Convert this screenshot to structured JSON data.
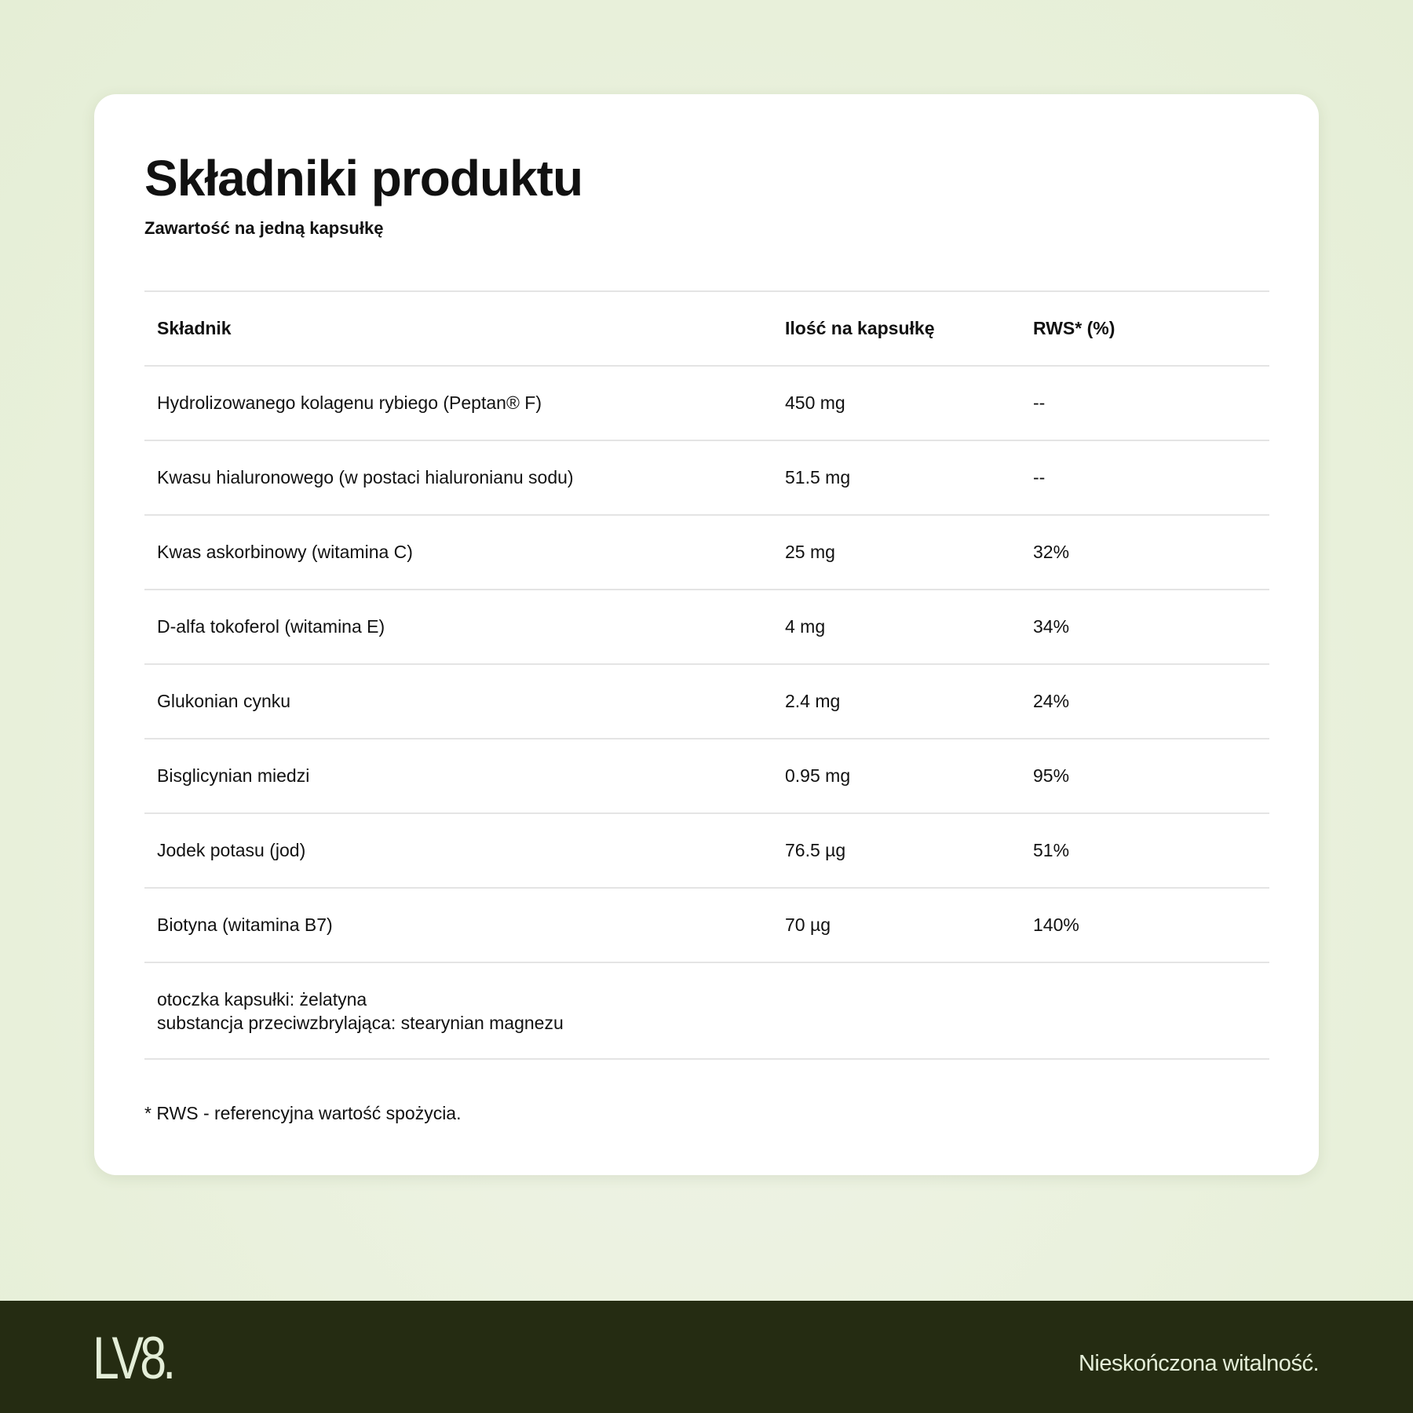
{
  "title": "Składniki produktu",
  "subtitle": "Zawartość na jedną kapsułkę",
  "table": {
    "headers": [
      "Składnik",
      "Ilość na kapsułkę",
      "RWS* (%)"
    ],
    "rows": [
      [
        "Hydrolizowanego kolagenu rybiego (Peptan® F)",
        "450 mg",
        "--"
      ],
      [
        "Kwasu hialuronowego (w postaci hialuronianu sodu)",
        "51.5 mg",
        "--"
      ],
      [
        "Kwas askorbinowy (witamina C)",
        "25 mg",
        "32%"
      ],
      [
        "D-alfa tokoferol (witamina E)",
        "4 mg",
        "34%"
      ],
      [
        "Glukonian cynku",
        "2.4 mg",
        "24%"
      ],
      [
        "Bisglicynian miedzi",
        "0.95 mg",
        "95%"
      ],
      [
        "Jodek potasu (jod)",
        "76.5 µg",
        "51%"
      ],
      [
        "Biotyna (witamina B7)",
        "70 µg",
        "140%"
      ]
    ],
    "extra": [
      "otoczka kapsułki: żelatyna",
      "substancja przeciwzbrylająca: stearynian magnezu"
    ]
  },
  "footnote": "* RWS - referencyjna wartość spożycia.",
  "footer": {
    "logo": "LV8.",
    "tagline": "Nieskończona witalność."
  },
  "colors": {
    "background": "#e8f0da",
    "footer": "#252c12",
    "footer_text": "#e4eed8"
  }
}
